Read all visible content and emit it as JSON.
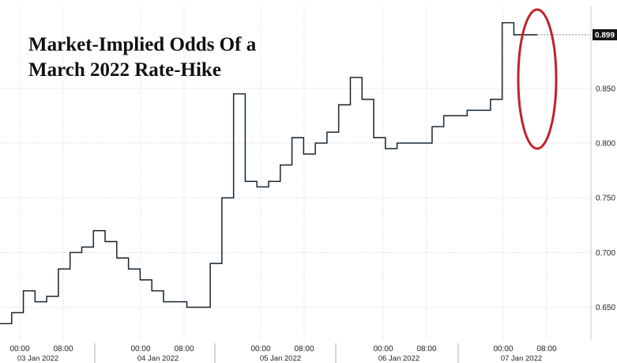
{
  "chart_data": {
    "type": "line",
    "title_lines": [
      "Market-Implied Odds Of a",
      "March 2022 Rate-Hike"
    ],
    "ylim": [
      0.62,
      0.925
    ],
    "yticks": [
      "0.650",
      "0.700",
      "0.750",
      "0.800",
      "0.850"
    ],
    "last_value": "0.899",
    "x_tick_labels": [
      "00:00",
      "08:00",
      "00:00",
      "08:00",
      "00:00",
      "08:00",
      "00:00",
      "08:00",
      "00:00",
      "08:00"
    ],
    "date_labels": [
      "03 Jan 2022",
      "04 Jan 2022",
      "05 Jan 2022",
      "06 Jan 2022",
      "07 Jan 2022"
    ],
    "grid": true,
    "annotation": "red ellipse highlighting final spike",
    "series": [
      {
        "color": "#1f1f1f",
        "x": [
          0,
          0.1,
          0.2,
          0.3,
          0.4,
          0.5,
          0.6,
          0.7,
          0.8,
          0.9,
          1.0,
          1.1,
          1.2,
          1.3,
          1.4,
          1.5,
          1.6,
          1.7,
          1.8,
          1.9,
          2.0,
          2.1,
          2.2,
          2.3,
          2.4,
          2.5,
          2.6,
          2.7,
          2.8,
          2.9,
          3.0,
          3.1,
          3.2,
          3.3,
          3.4,
          3.5,
          3.6,
          3.7,
          3.8,
          3.9,
          4.0,
          4.1,
          4.2,
          4.3,
          4.4,
          4.5,
          4.55
        ],
        "values": [
          0.635,
          0.645,
          0.665,
          0.655,
          0.66,
          0.685,
          0.7,
          0.705,
          0.72,
          0.71,
          0.695,
          0.685,
          0.675,
          0.665,
          0.655,
          0.655,
          0.65,
          0.65,
          0.69,
          0.75,
          0.845,
          0.765,
          0.76,
          0.765,
          0.78,
          0.805,
          0.79,
          0.8,
          0.81,
          0.835,
          0.86,
          0.84,
          0.805,
          0.795,
          0.8,
          0.8,
          0.8,
          0.815,
          0.825,
          0.825,
          0.83,
          0.83,
          0.84,
          0.91,
          0.899,
          0.899,
          0.899
        ]
      }
    ]
  }
}
